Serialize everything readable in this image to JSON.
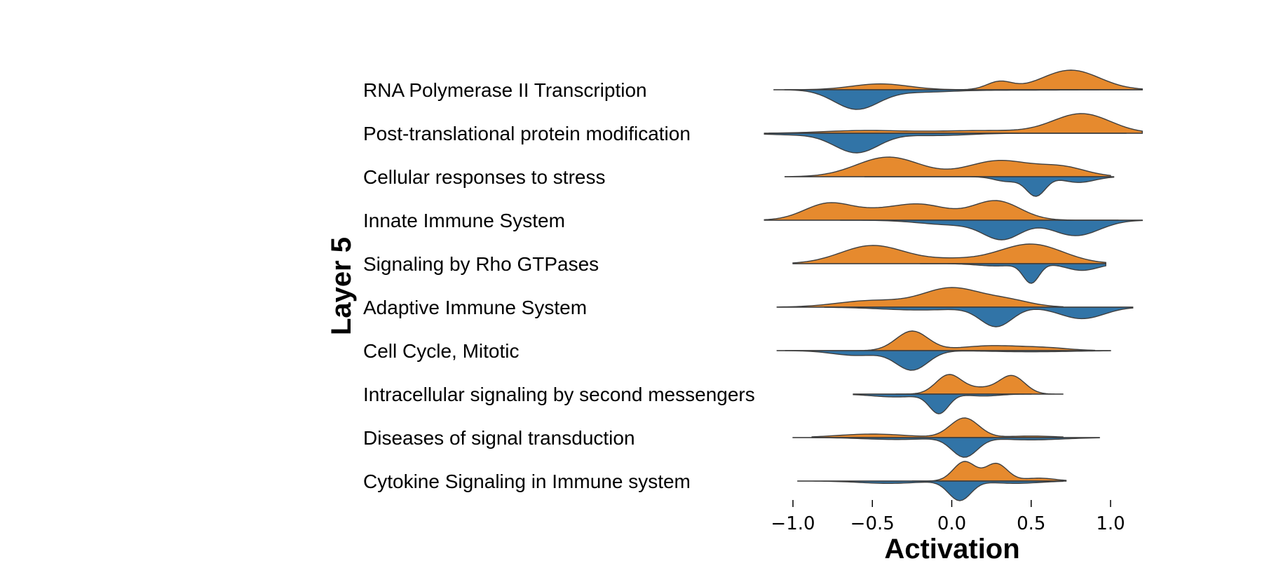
{
  "chart_data": {
    "type": "violin",
    "orientation": "horizontal",
    "split": true,
    "xlabel": "Activation",
    "ylabel": "Layer 5",
    "xlim": [
      -1.2,
      1.22
    ],
    "xticks": [
      -1.0,
      -0.5,
      0.0,
      0.5,
      1.0
    ],
    "xtick_labels": [
      "−1.0",
      "−0.5",
      "0.0",
      "0.5",
      "1.0"
    ],
    "colors": {
      "upper": "#e68a2e",
      "lower": "#3174a7"
    },
    "categories": [
      "RNA Polymerase II Transcription",
      "Post-translational protein modification",
      "Cellular responses to stress",
      "Innate Immune System",
      "Signaling by Rho GTPases",
      "Adaptive Immune System",
      "Cell Cycle, Mitotic",
      "Intracellular signaling by second messengers",
      "Diseases of signal transduction",
      "Cytokine Signaling in Immune system"
    ],
    "rows": [
      {
        "upper": {
          "range": [
            -1.05,
            1.2
          ],
          "peaks": [
            [
              -0.45,
              0.18,
              0.3
            ],
            [
              0.3,
              0.08,
              0.4
            ],
            [
              0.75,
              0.18,
              1.0
            ]
          ]
        },
        "lower": {
          "range": [
            -1.12,
            1.2
          ],
          "peaks": [
            [
              -0.6,
              0.14,
              1.0
            ],
            [
              -0.2,
              0.2,
              0.12
            ],
            [
              0.4,
              0.3,
              0.02
            ]
          ]
        }
      },
      {
        "upper": {
          "range": [
            -1.15,
            1.2
          ],
          "peaks": [
            [
              -0.55,
              0.25,
              0.14
            ],
            [
              0.2,
              0.3,
              0.14
            ],
            [
              0.82,
              0.18,
              1.0
            ]
          ]
        },
        "lower": {
          "range": [
            -1.18,
            1.1
          ],
          "peaks": [
            [
              -0.6,
              0.14,
              1.0
            ],
            [
              -1.0,
              0.18,
              0.08
            ],
            [
              -0.1,
              0.2,
              0.12
            ]
          ]
        }
      },
      {
        "upper": {
          "range": [
            -1.05,
            1.0
          ],
          "peaks": [
            [
              -0.4,
              0.2,
              0.55
            ],
            [
              0.3,
              0.2,
              0.45
            ],
            [
              0.7,
              0.15,
              0.25
            ]
          ]
        },
        "lower": {
          "range": [
            -0.55,
            1.02
          ],
          "peaks": [
            [
              0.53,
              0.06,
              1.0
            ],
            [
              0.35,
              0.08,
              0.25
            ],
            [
              0.8,
              0.1,
              0.3
            ]
          ]
        }
      },
      {
        "upper": {
          "range": [
            -1.18,
            1.05
          ],
          "peaks": [
            [
              -0.78,
              0.15,
              0.85
            ],
            [
              -0.2,
              0.18,
              0.8
            ],
            [
              0.28,
              0.15,
              1.0
            ],
            [
              -0.5,
              0.15,
              0.3
            ]
          ]
        },
        "lower": {
          "range": [
            -0.7,
            1.2
          ],
          "peaks": [
            [
              0.32,
              0.12,
              1.0
            ],
            [
              0.78,
              0.15,
              0.85
            ],
            [
              0.0,
              0.2,
              0.25
            ]
          ]
        }
      },
      {
        "upper": {
          "range": [
            -1.0,
            0.97
          ],
          "peaks": [
            [
              -0.5,
              0.2,
              0.65
            ],
            [
              0.5,
              0.2,
              0.7
            ],
            [
              0.0,
              0.2,
              0.15
            ]
          ]
        },
        "lower": {
          "range": [
            -0.2,
            0.97
          ],
          "peaks": [
            [
              0.5,
              0.05,
              1.0
            ],
            [
              0.82,
              0.1,
              0.35
            ],
            [
              0.28,
              0.12,
              0.12
            ]
          ]
        }
      },
      {
        "upper": {
          "range": [
            -1.1,
            0.7
          ],
          "peaks": [
            [
              0.0,
              0.18,
              1.0
            ],
            [
              -0.5,
              0.22,
              0.35
            ],
            [
              0.35,
              0.15,
              0.35
            ]
          ]
        },
        "lower": {
          "range": [
            -0.8,
            1.14
          ],
          "peaks": [
            [
              0.28,
              0.1,
              1.0
            ],
            [
              0.82,
              0.14,
              0.6
            ],
            [
              -0.2,
              0.25,
              0.15
            ]
          ]
        }
      },
      {
        "upper": {
          "range": [
            -1.05,
            0.9
          ],
          "peaks": [
            [
              -0.25,
              0.1,
              1.0
            ],
            [
              0.25,
              0.2,
              0.25
            ],
            [
              0.6,
              0.15,
              0.12
            ]
          ]
        },
        "lower": {
          "range": [
            -1.1,
            1.0
          ],
          "peaks": [
            [
              -0.25,
              0.1,
              1.0
            ],
            [
              -0.6,
              0.15,
              0.25
            ],
            [
              0.5,
              0.25,
              0.06
            ]
          ]
        }
      },
      {
        "upper": {
          "range": [
            -0.35,
            0.7
          ],
          "peaks": [
            [
              -0.02,
              0.08,
              1.0
            ],
            [
              0.38,
              0.08,
              0.95
            ],
            [
              0.18,
              0.1,
              0.3
            ]
          ]
        },
        "lower": {
          "range": [
            -0.62,
            0.5
          ],
          "peaks": [
            [
              -0.08,
              0.06,
              1.0
            ],
            [
              -0.35,
              0.15,
              0.15
            ],
            [
              0.2,
              0.1,
              0.1
            ]
          ]
        }
      },
      {
        "upper": {
          "range": [
            -0.88,
            0.7
          ],
          "peaks": [
            [
              0.08,
              0.09,
              1.0
            ],
            [
              -0.5,
              0.22,
              0.18
            ],
            [
              0.5,
              0.15,
              0.08
            ]
          ]
        },
        "lower": {
          "range": [
            -1.0,
            0.93
          ],
          "peaks": [
            [
              0.08,
              0.08,
              1.0
            ],
            [
              -0.35,
              0.2,
              0.1
            ],
            [
              0.5,
              0.2,
              0.12
            ]
          ]
        }
      },
      {
        "upper": {
          "range": [
            -0.25,
            0.72
          ],
          "peaks": [
            [
              0.08,
              0.07,
              1.0
            ],
            [
              0.28,
              0.07,
              0.9
            ],
            [
              0.55,
              0.1,
              0.15
            ]
          ]
        },
        "lower": {
          "range": [
            -0.97,
            0.7
          ],
          "peaks": [
            [
              0.05,
              0.07,
              1.0
            ],
            [
              -0.4,
              0.18,
              0.12
            ],
            [
              0.4,
              0.15,
              0.12
            ]
          ]
        }
      }
    ]
  }
}
